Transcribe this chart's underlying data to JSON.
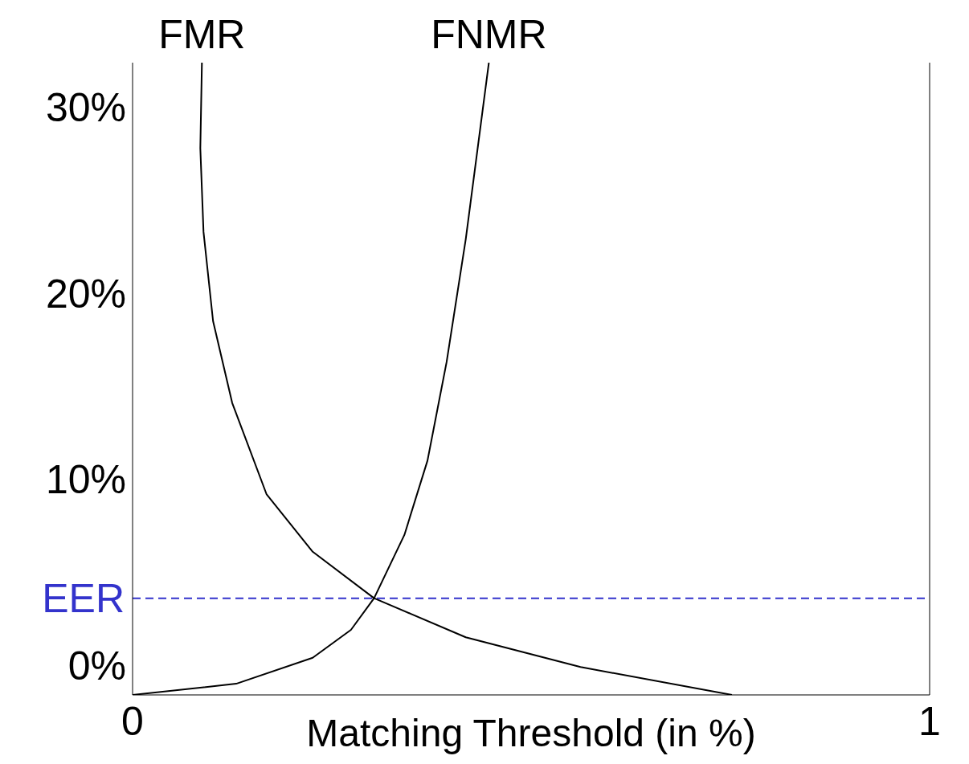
{
  "chart_data": {
    "type": "line",
    "xlabel": "Matching Threshold (in %)",
    "xlim": [
      0,
      1
    ],
    "xticks": [
      0,
      1
    ],
    "ylim": [
      -1.6,
      32.4
    ],
    "yticks": [
      {
        "value": 0,
        "label": "0%"
      },
      {
        "value": 10,
        "label": "10%"
      },
      {
        "value": 20,
        "label": "20%"
      },
      {
        "value": 30,
        "label": "30%"
      }
    ],
    "grid": false,
    "legend": false,
    "marker": "none",
    "line_style": "solid",
    "series": [
      {
        "name": "FMR",
        "color": "#000000",
        "x": [
          0.087,
          0.085,
          0.089,
          0.101,
          0.125,
          0.168,
          0.226,
          0.303,
          0.418,
          0.562,
          0.752
        ],
        "values": [
          32.4,
          27.8,
          23.3,
          18.5,
          14.1,
          9.2,
          6.1,
          3.6,
          1.5,
          -0.1,
          -1.6
        ]
      },
      {
        "name": "FNMR",
        "color": "#000000",
        "x": [
          0,
          0.13,
          0.226,
          0.274,
          0.303,
          0.341,
          0.37,
          0.394,
          0.418,
          0.447
        ],
        "values": [
          -1.6,
          -1.0,
          0.4,
          1.9,
          3.6,
          7.0,
          11.0,
          16.3,
          22.9,
          32.4
        ]
      }
    ],
    "ref_lines": [
      {
        "axis": "y",
        "value": 3.6,
        "label": "EER",
        "color": "#3333cc",
        "line_style": "dashed"
      }
    ]
  }
}
